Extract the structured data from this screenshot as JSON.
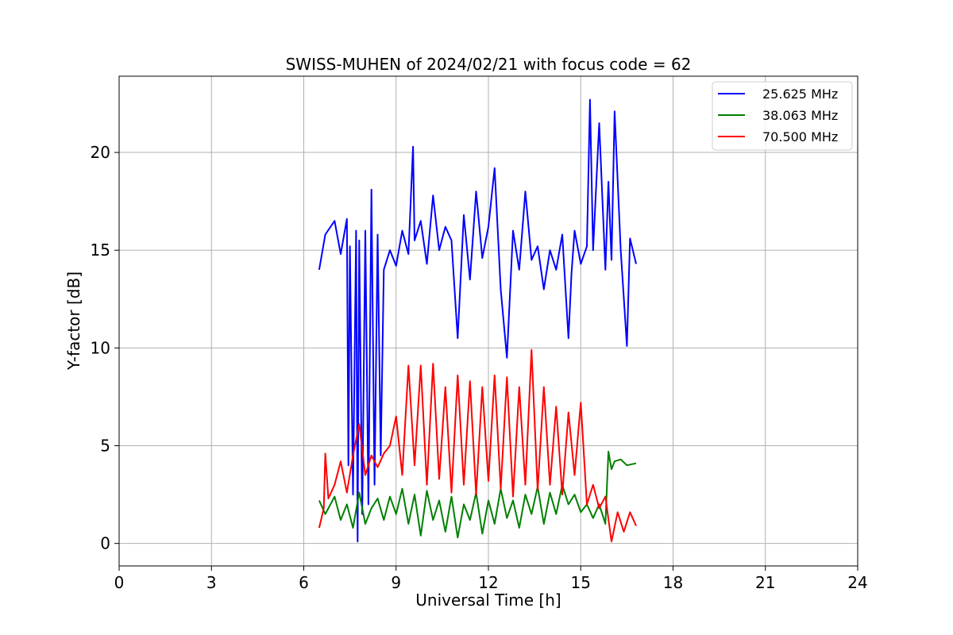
{
  "chart_data": {
    "type": "line",
    "title": "SWISS-MUHEN of 2024/02/21 with focus code = 62",
    "xlabel": "Universal Time [h]",
    "ylabel": "Y-factor [dB]",
    "xlim": [
      0,
      24
    ],
    "ylim": [
      -1.15,
      23.9
    ],
    "xticks": [
      0,
      3,
      6,
      9,
      12,
      15,
      18,
      21,
      24
    ],
    "yticks": [
      0,
      5,
      10,
      15,
      20
    ],
    "grid": true,
    "legend_position": "top-right",
    "series": [
      {
        "name": "25.625 MHz",
        "color": "#0000ff",
        "x": [
          6.5,
          6.7,
          7.0,
          7.2,
          7.4,
          7.45,
          7.5,
          7.6,
          7.7,
          7.75,
          7.8,
          7.9,
          8.0,
          8.1,
          8.2,
          8.3,
          8.4,
          8.5,
          8.6,
          8.8,
          9.0,
          9.2,
          9.4,
          9.55,
          9.6,
          9.8,
          10.0,
          10.2,
          10.4,
          10.6,
          10.8,
          11.0,
          11.2,
          11.4,
          11.6,
          11.8,
          12.0,
          12.2,
          12.4,
          12.6,
          12.8,
          13.0,
          13.2,
          13.4,
          13.6,
          13.8,
          14.0,
          14.2,
          14.4,
          14.6,
          14.7,
          14.8,
          15.0,
          15.2,
          15.3,
          15.4,
          15.6,
          15.8,
          15.9,
          16.0,
          16.1,
          16.3,
          16.5,
          16.6,
          16.8
        ],
        "y": [
          14.0,
          15.8,
          16.5,
          14.8,
          16.6,
          4.0,
          15.2,
          2.5,
          16.0,
          0.1,
          15.5,
          1.5,
          16.0,
          2.0,
          18.1,
          3.0,
          15.8,
          4.5,
          14.0,
          15.0,
          14.2,
          16.0,
          14.8,
          20.3,
          15.5,
          16.5,
          14.3,
          17.8,
          15.0,
          16.2,
          15.5,
          10.5,
          16.8,
          13.5,
          18.0,
          14.6,
          16.2,
          19.2,
          13.0,
          9.5,
          16.0,
          14.0,
          18.0,
          14.5,
          15.2,
          13.0,
          15.0,
          14.0,
          15.8,
          10.5,
          13.8,
          16.0,
          14.3,
          15.2,
          22.7,
          15.0,
          21.5,
          14.0,
          18.5,
          14.5,
          22.1,
          15.0,
          10.1,
          15.6,
          14.3
        ]
      },
      {
        "name": "38.063 MHz",
        "color": "#008000",
        "x": [
          6.5,
          6.7,
          7.0,
          7.2,
          7.4,
          7.6,
          7.8,
          8.0,
          8.2,
          8.4,
          8.6,
          8.8,
          9.0,
          9.2,
          9.4,
          9.6,
          9.8,
          10.0,
          10.2,
          10.4,
          10.6,
          10.8,
          11.0,
          11.2,
          11.4,
          11.6,
          11.8,
          12.0,
          12.2,
          12.4,
          12.6,
          12.8,
          13.0,
          13.2,
          13.4,
          13.6,
          13.8,
          14.0,
          14.2,
          14.4,
          14.6,
          14.8,
          15.0,
          15.2,
          15.4,
          15.6,
          15.8,
          15.9,
          16.0,
          16.1,
          16.3,
          16.5,
          16.8
        ],
        "y": [
          2.2,
          1.5,
          2.4,
          1.2,
          2.0,
          0.8,
          2.6,
          1.0,
          1.8,
          2.3,
          1.2,
          2.4,
          1.5,
          2.8,
          1.0,
          2.5,
          0.4,
          2.7,
          1.2,
          2.2,
          0.6,
          2.4,
          0.3,
          2.0,
          1.2,
          2.6,
          0.5,
          2.2,
          1.0,
          2.8,
          1.3,
          2.2,
          0.8,
          2.5,
          1.5,
          2.9,
          1.0,
          2.6,
          1.5,
          3.0,
          2.0,
          2.5,
          1.6,
          2.0,
          1.3,
          2.0,
          1.0,
          4.7,
          3.8,
          4.2,
          4.3,
          4.0,
          4.1
        ]
      },
      {
        "name": "70.500 MHz",
        "color": "#ff0000",
        "x": [
          6.5,
          6.65,
          6.7,
          6.8,
          7.0,
          7.2,
          7.4,
          7.6,
          7.8,
          8.0,
          8.2,
          8.4,
          8.6,
          8.8,
          9.0,
          9.2,
          9.4,
          9.6,
          9.8,
          10.0,
          10.2,
          10.4,
          10.6,
          10.8,
          11.0,
          11.2,
          11.4,
          11.6,
          11.8,
          12.0,
          12.2,
          12.4,
          12.6,
          12.8,
          13.0,
          13.2,
          13.4,
          13.6,
          13.8,
          14.0,
          14.2,
          14.4,
          14.6,
          14.8,
          15.0,
          15.2,
          15.4,
          15.6,
          15.8,
          16.0,
          16.2,
          16.4,
          16.6,
          16.8
        ],
        "y": [
          0.8,
          1.8,
          4.6,
          2.3,
          3.0,
          4.2,
          2.6,
          4.5,
          6.1,
          3.5,
          4.5,
          3.9,
          4.6,
          5.0,
          6.5,
          3.5,
          9.1,
          4.0,
          9.1,
          3.0,
          9.2,
          3.3,
          8.0,
          2.6,
          8.6,
          3.0,
          8.3,
          2.5,
          8.0,
          3.2,
          8.6,
          2.8,
          8.5,
          2.4,
          8.0,
          3.0,
          9.9,
          2.7,
          8.0,
          3.0,
          7.0,
          2.5,
          6.7,
          3.5,
          7.2,
          2.0,
          3.0,
          1.8,
          2.4,
          0.1,
          1.6,
          0.6,
          1.6,
          0.9
        ]
      }
    ]
  }
}
